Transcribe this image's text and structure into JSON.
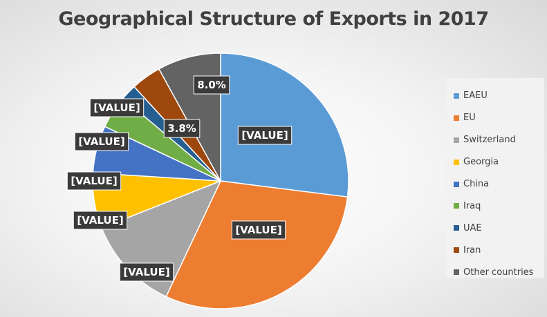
{
  "chart_data": {
    "type": "pie",
    "title": "Geographical Structure of Exports in 2017",
    "legend_position": "right",
    "slices": [
      {
        "name": "EAEU",
        "value": 27.0,
        "label": "[VALUE]",
        "color": "#5b9bd5"
      },
      {
        "name": "EU",
        "value": 30.0,
        "label": "[VALUE]",
        "color": "#ed7d31"
      },
      {
        "name": "Switzerland",
        "value": 12.0,
        "label": "[VALUE]",
        "color": "#a5a5a5"
      },
      {
        "name": "Georgia",
        "value": 7.0,
        "label": "[VALUE]",
        "color": "#ffc000"
      },
      {
        "name": "China",
        "value": 6.0,
        "label": "[VALUE]",
        "color": "#4472c4"
      },
      {
        "name": "Iraq",
        "value": 4.2,
        "label": "[VALUE]",
        "color": "#70ad47"
      },
      {
        "name": "UAE",
        "value": 2.0,
        "label": "[VALUE]",
        "color": "#255e91"
      },
      {
        "name": "Iran",
        "value": 3.8,
        "label": "3.8%",
        "color": "#9e480e"
      },
      {
        "name": "Other countries",
        "value": 8.0,
        "label": "8.0%",
        "color": "#636363"
      }
    ]
  }
}
